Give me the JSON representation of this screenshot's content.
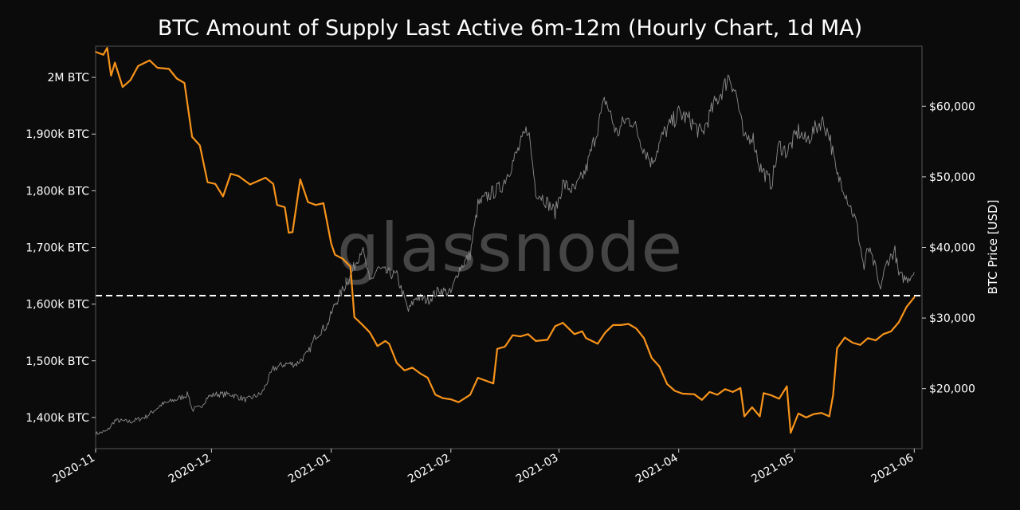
{
  "watermark": "glassnode",
  "chart_data": {
    "type": "line",
    "title": "BTC Amount of Supply Last Active 6m-12m (Hourly Chart, 1d MA)",
    "xlabel": "",
    "ylabel_left": "",
    "ylabel_right": "BTC Price [USD]",
    "x_range": [
      "2020-11-01",
      "2021-06-03"
    ],
    "x_ticks": [
      "2020-11",
      "2020-12",
      "2021-01",
      "2021-02",
      "2021-03",
      "2021-04",
      "2021-05",
      "2021-06"
    ],
    "y_left_range": [
      1345000,
      2055000
    ],
    "y_left_ticks": [
      {
        "value": 1400000,
        "label": "1,400k BTC"
      },
      {
        "value": 1500000,
        "label": "1,500k BTC"
      },
      {
        "value": 1600000,
        "label": "1,600k BTC"
      },
      {
        "value": 1700000,
        "label": "1,700k BTC"
      },
      {
        "value": 1800000,
        "label": "1,800k BTC"
      },
      {
        "value": 1900000,
        "label": "1,900k BTC"
      },
      {
        "value": 2000000,
        "label": "2M BTC"
      }
    ],
    "y_right_range": [
      11500,
      68500
    ],
    "y_right_ticks": [
      {
        "value": 20000,
        "label": "$20,000"
      },
      {
        "value": 30000,
        "label": "$30,000"
      },
      {
        "value": 40000,
        "label": "$40,000"
      },
      {
        "value": 50000,
        "label": "$50,000"
      },
      {
        "value": 60000,
        "label": "$60,000"
      }
    ],
    "threshold_line": {
      "axis": "left",
      "value": 1615000,
      "color": "#ffffff",
      "style": "dashed"
    },
    "grid": false,
    "legend": "none",
    "colors": {
      "supply": "#f7931a",
      "price": "#8c8c8c",
      "background": "#0b0b0b",
      "frame": "#555555"
    },
    "series": [
      {
        "axis": "left",
        "color": "#f7931a",
        "points": [
          [
            "2020-11-01",
            2045000
          ],
          [
            "2020-11-03",
            2040000
          ],
          [
            "2020-11-04",
            2052000
          ],
          [
            "2020-11-05",
            2003000
          ],
          [
            "2020-11-06",
            2026000
          ],
          [
            "2020-11-08",
            1983000
          ],
          [
            "2020-11-10",
            1995000
          ],
          [
            "2020-11-12",
            2020000
          ],
          [
            "2020-11-15",
            2030000
          ],
          [
            "2020-11-17",
            2017000
          ],
          [
            "2020-11-20",
            2015000
          ],
          [
            "2020-11-22",
            1998000
          ],
          [
            "2020-11-24",
            1990000
          ],
          [
            "2020-11-26",
            1895000
          ],
          [
            "2020-11-28",
            1880000
          ],
          [
            "2020-11-30",
            1815000
          ],
          [
            "2020-12-02",
            1812000
          ],
          [
            "2020-12-04",
            1790000
          ],
          [
            "2020-12-06",
            1830000
          ],
          [
            "2020-12-08",
            1826000
          ],
          [
            "2020-12-11",
            1811000
          ],
          [
            "2020-12-13",
            1817000
          ],
          [
            "2020-12-15",
            1823000
          ],
          [
            "2020-12-17",
            1812000
          ],
          [
            "2020-12-18",
            1775000
          ],
          [
            "2020-12-20",
            1771000
          ],
          [
            "2020-12-21",
            1726000
          ],
          [
            "2020-12-22",
            1727000
          ],
          [
            "2020-12-24",
            1820000
          ],
          [
            "2020-12-26",
            1780000
          ],
          [
            "2020-12-28",
            1775000
          ],
          [
            "2020-12-30",
            1778000
          ],
          [
            "2021-01-01",
            1707000
          ],
          [
            "2021-01-02",
            1687000
          ],
          [
            "2021-01-04",
            1680000
          ],
          [
            "2021-01-06",
            1666000
          ],
          [
            "2021-01-07",
            1577000
          ],
          [
            "2021-01-09",
            1564000
          ],
          [
            "2021-01-11",
            1550000
          ],
          [
            "2021-01-13",
            1526000
          ],
          [
            "2021-01-15",
            1535000
          ],
          [
            "2021-01-16",
            1530000
          ],
          [
            "2021-01-18",
            1496000
          ],
          [
            "2021-01-20",
            1483000
          ],
          [
            "2021-01-22",
            1488000
          ],
          [
            "2021-01-24",
            1478000
          ],
          [
            "2021-01-26",
            1470000
          ],
          [
            "2021-01-28",
            1440000
          ],
          [
            "2021-01-30",
            1434000
          ],
          [
            "2021-02-01",
            1432000
          ],
          [
            "2021-02-03",
            1427000
          ],
          [
            "2021-02-06",
            1440000
          ],
          [
            "2021-02-08",
            1470000
          ],
          [
            "2021-02-10",
            1465000
          ],
          [
            "2021-02-12",
            1460000
          ],
          [
            "2021-02-13",
            1521000
          ],
          [
            "2021-02-15",
            1525000
          ],
          [
            "2021-02-17",
            1545000
          ],
          [
            "2021-02-19",
            1543000
          ],
          [
            "2021-02-21",
            1547000
          ],
          [
            "2021-02-23",
            1535000
          ],
          [
            "2021-02-26",
            1537000
          ],
          [
            "2021-02-28",
            1561000
          ],
          [
            "2021-03-02",
            1567000
          ],
          [
            "2021-03-05",
            1547000
          ],
          [
            "2021-03-07",
            1552000
          ],
          [
            "2021-03-08",
            1540000
          ],
          [
            "2021-03-11",
            1530000
          ],
          [
            "2021-03-13",
            1550000
          ],
          [
            "2021-03-15",
            1563000
          ],
          [
            "2021-03-17",
            1563000
          ],
          [
            "2021-03-19",
            1565000
          ],
          [
            "2021-03-21",
            1557000
          ],
          [
            "2021-03-23",
            1540000
          ],
          [
            "2021-03-25",
            1505000
          ],
          [
            "2021-03-27",
            1490000
          ],
          [
            "2021-03-29",
            1459000
          ],
          [
            "2021-03-31",
            1447000
          ],
          [
            "2021-04-02",
            1442000
          ],
          [
            "2021-04-05",
            1441000
          ],
          [
            "2021-04-07",
            1431000
          ],
          [
            "2021-04-09",
            1445000
          ],
          [
            "2021-04-11",
            1440000
          ],
          [
            "2021-04-13",
            1450000
          ],
          [
            "2021-04-15",
            1445000
          ],
          [
            "2021-04-17",
            1452000
          ],
          [
            "2021-04-18",
            1402000
          ],
          [
            "2021-04-20",
            1418000
          ],
          [
            "2021-04-22",
            1402000
          ],
          [
            "2021-04-23",
            1443000
          ],
          [
            "2021-04-25",
            1439000
          ],
          [
            "2021-04-27",
            1433000
          ],
          [
            "2021-04-29",
            1455000
          ],
          [
            "2021-04-30",
            1373000
          ],
          [
            "2021-05-02",
            1407000
          ],
          [
            "2021-05-04",
            1400000
          ],
          [
            "2021-05-06",
            1406000
          ],
          [
            "2021-05-08",
            1408000
          ],
          [
            "2021-05-10",
            1402000
          ],
          [
            "2021-05-11",
            1440000
          ],
          [
            "2021-05-12",
            1522000
          ],
          [
            "2021-05-14",
            1541000
          ],
          [
            "2021-05-16",
            1532000
          ],
          [
            "2021-05-18",
            1528000
          ],
          [
            "2021-05-20",
            1540000
          ],
          [
            "2021-05-22",
            1536000
          ],
          [
            "2021-05-24",
            1547000
          ],
          [
            "2021-05-26",
            1552000
          ],
          [
            "2021-05-28",
            1568000
          ],
          [
            "2021-05-30",
            1595000
          ],
          [
            "2021-06-01",
            1612000
          ]
        ]
      },
      {
        "axis": "right",
        "color": "#8c8c8c",
        "points": [
          [
            "2020-11-01",
            13600
          ],
          [
            "2020-11-04",
            14000
          ],
          [
            "2020-11-06",
            15500
          ],
          [
            "2020-11-10",
            15300
          ],
          [
            "2020-11-14",
            16000
          ],
          [
            "2020-11-18",
            17700
          ],
          [
            "2020-11-22",
            18500
          ],
          [
            "2020-11-25",
            19200
          ],
          [
            "2020-11-26",
            17000
          ],
          [
            "2020-11-28",
            17300
          ],
          [
            "2020-11-30",
            18800
          ],
          [
            "2020-12-02",
            19200
          ],
          [
            "2020-12-06",
            19200
          ],
          [
            "2020-12-10",
            18400
          ],
          [
            "2020-12-14",
            19300
          ],
          [
            "2020-12-17",
            22800
          ],
          [
            "2020-12-20",
            23500
          ],
          [
            "2020-12-23",
            23500
          ],
          [
            "2020-12-26",
            25000
          ],
          [
            "2020-12-28",
            27500
          ],
          [
            "2020-12-31",
            29000
          ],
          [
            "2021-01-02",
            32000
          ],
          [
            "2021-01-06",
            36000
          ],
          [
            "2021-01-09",
            40000
          ],
          [
            "2021-01-11",
            35000
          ],
          [
            "2021-01-13",
            37000
          ],
          [
            "2021-01-15",
            36500
          ],
          [
            "2021-01-18",
            36000
          ],
          [
            "2021-01-21",
            31000
          ],
          [
            "2021-01-23",
            33000
          ],
          [
            "2021-01-26",
            32500
          ],
          [
            "2021-01-29",
            34000
          ],
          [
            "2021-02-01",
            33500
          ],
          [
            "2021-02-03",
            36800
          ],
          [
            "2021-02-06",
            39000
          ],
          [
            "2021-02-08",
            46000
          ],
          [
            "2021-02-11",
            47500
          ],
          [
            "2021-02-14",
            48500
          ],
          [
            "2021-02-17",
            52000
          ],
          [
            "2021-02-21",
            57000
          ],
          [
            "2021-02-23",
            48000
          ],
          [
            "2021-02-25",
            47000
          ],
          [
            "2021-02-28",
            45000
          ],
          [
            "2021-03-02",
            49000
          ],
          [
            "2021-03-05",
            48000
          ],
          [
            "2021-03-08",
            51000
          ],
          [
            "2021-03-11",
            57000
          ],
          [
            "2021-03-13",
            61000
          ],
          [
            "2021-03-16",
            56000
          ],
          [
            "2021-03-18",
            58000
          ],
          [
            "2021-03-20",
            58000
          ],
          [
            "2021-03-23",
            54000
          ],
          [
            "2021-03-25",
            52000
          ],
          [
            "2021-03-28",
            56000
          ],
          [
            "2021-04-01",
            59000
          ],
          [
            "2021-04-04",
            58000
          ],
          [
            "2021-04-07",
            56000
          ],
          [
            "2021-04-10",
            60000
          ],
          [
            "2021-04-13",
            63000
          ],
          [
            "2021-04-14",
            64500
          ],
          [
            "2021-04-16",
            61500
          ],
          [
            "2021-04-18",
            55000
          ],
          [
            "2021-04-20",
            56000
          ],
          [
            "2021-04-22",
            51500
          ],
          [
            "2021-04-25",
            49000
          ],
          [
            "2021-04-27",
            54500
          ],
          [
            "2021-04-29",
            53500
          ],
          [
            "2021-05-02",
            56500
          ],
          [
            "2021-05-04",
            55000
          ],
          [
            "2021-05-06",
            56500
          ],
          [
            "2021-05-08",
            58000
          ],
          [
            "2021-05-10",
            56000
          ],
          [
            "2021-05-12",
            50000
          ],
          [
            "2021-05-13",
            49500
          ],
          [
            "2021-05-15",
            46500
          ],
          [
            "2021-05-17",
            43500
          ],
          [
            "2021-05-19",
            37000
          ],
          [
            "2021-05-20",
            40000
          ],
          [
            "2021-05-22",
            37000
          ],
          [
            "2021-05-23",
            34000
          ],
          [
            "2021-05-25",
            38000
          ],
          [
            "2021-05-27",
            39500
          ],
          [
            "2021-05-28",
            36000
          ],
          [
            "2021-05-30",
            35500
          ],
          [
            "2021-06-01",
            36500
          ]
        ]
      }
    ]
  }
}
